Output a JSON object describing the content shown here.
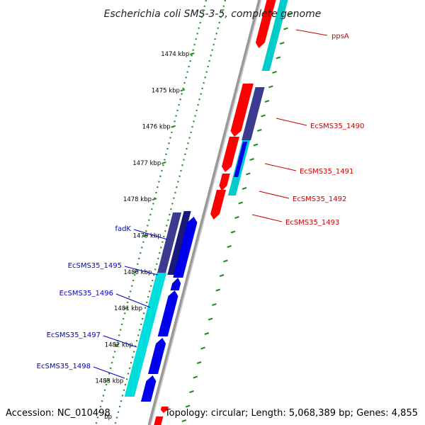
{
  "title": "Escherichia coli SMS-3-5, complete genome",
  "footer": {
    "accession": "Accession: NC_010498",
    "summary": "Topology: circular; Length: 5,068,389 bp; Genes: 4,855"
  },
  "ruler": {
    "ticks": [
      {
        "label": "1474 kbp",
        "kbp": 1474
      },
      {
        "label": "1475 kbp",
        "kbp": 1475
      },
      {
        "label": "1476 kbp",
        "kbp": 1476
      },
      {
        "label": "1477 kbp",
        "kbp": 1477
      },
      {
        "label": "1478 kbp",
        "kbp": 1478
      },
      {
        "label": "1479 kbp",
        "kbp": 1479
      },
      {
        "label": "1480 kbp",
        "kbp": 1480
      },
      {
        "label": "1481 kbp",
        "kbp": 1481
      },
      {
        "label": "1482 kbp",
        "kbp": 1482
      },
      {
        "label": "1483 kbp",
        "kbp": 1483
      }
    ],
    "partial_tick_label": "bp"
  },
  "gene_labels": [
    {
      "name": "ppsA",
      "strand": "forward"
    },
    {
      "name": "EcSMS35_1490",
      "strand": "forward"
    },
    {
      "name": "EcSMS35_1491",
      "strand": "forward"
    },
    {
      "name": "EcSMS35_1492",
      "strand": "forward"
    },
    {
      "name": "EcSMS35_1493",
      "strand": "forward"
    },
    {
      "name": "fadK",
      "strand": "reverse"
    },
    {
      "name": "EcSMS35_1495",
      "strand": "reverse"
    },
    {
      "name": "EcSMS35_1496",
      "strand": "reverse"
    },
    {
      "name": "EcSMS35_1497",
      "strand": "reverse"
    },
    {
      "name": "EcSMS35_1498",
      "strand": "reverse"
    }
  ],
  "colors": {
    "forward_label": "#cc0000",
    "reverse_label": "#0000cc",
    "forward_cds": "#ff0000",
    "reverse_cds": "#0000ee",
    "forward_feature": "#00cccc",
    "reverse_feature": "#00dddd",
    "dark_feature": "#3b3b8f",
    "navy_feature": "#1a1a7a",
    "backbone": "#999999",
    "tick_mark": "#228b22"
  }
}
